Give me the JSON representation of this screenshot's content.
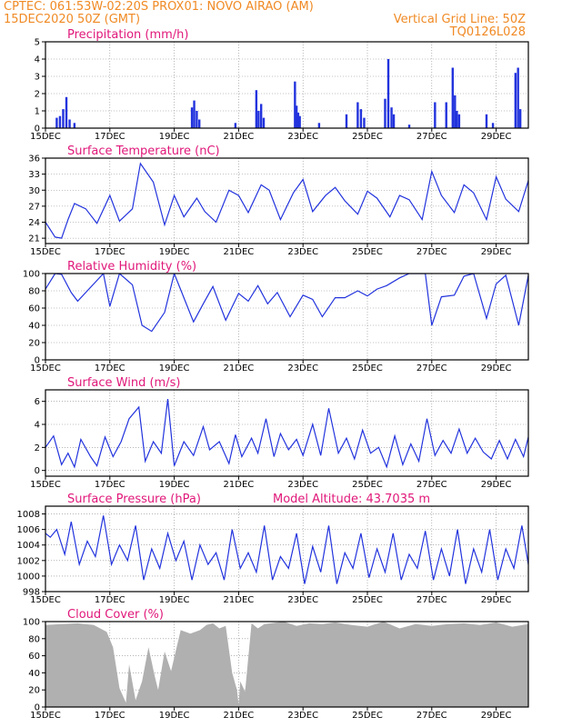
{
  "header": {
    "line1_left": "CPTEC:   061:53W-02:20S    PROX01: NOVO AIRAO (AM)",
    "line2_left": "15DEC2020 50Z (GMT)",
    "line2_right": "Vertical Grid Line: 50Z",
    "line3_right": "TQ0126L028"
  },
  "colors": {
    "header": "#f08a24",
    "title": "#e0187a",
    "series": "#2233dd",
    "cloud": "#b0b0b0",
    "grid": "#888888"
  },
  "x_axis": {
    "tick_labels": [
      "15DEC",
      "17DEC",
      "19DEC",
      "21DEC",
      "23DEC",
      "25DEC",
      "27DEC",
      "29DEC"
    ],
    "tick_days": [
      15,
      17,
      19,
      21,
      23,
      25,
      27,
      29
    ],
    "range_days": [
      15,
      30
    ]
  },
  "chart_data": [
    {
      "type": "bar",
      "title": "Precipitation (mm/h)",
      "ylim": [
        0,
        5
      ],
      "yticks": [
        0,
        1,
        2,
        3,
        4,
        5
      ],
      "x": [
        15.35,
        15.45,
        15.55,
        15.65,
        15.75,
        15.9,
        19.55,
        19.62,
        19.7,
        19.78,
        20.9,
        21.55,
        21.62,
        21.7,
        21.78,
        22.75,
        22.8,
        22.85,
        22.9,
        23.5,
        24.35,
        24.7,
        24.8,
        24.9,
        25.55,
        25.65,
        25.75,
        25.82,
        26.3,
        27.1,
        27.45,
        27.65,
        27.72,
        27.78,
        27.85,
        28.7,
        28.9,
        29.6,
        29.68,
        29.75
      ],
      "values": [
        0.6,
        0.7,
        1.1,
        1.8,
        0.5,
        0.3,
        1.2,
        1.6,
        1.0,
        0.5,
        0.3,
        2.2,
        1.0,
        1.4,
        0.6,
        2.7,
        1.3,
        0.9,
        0.7,
        0.3,
        0.8,
        1.5,
        1.1,
        0.6,
        1.7,
        4.0,
        1.2,
        0.8,
        0.2,
        1.5,
        1.5,
        3.5,
        1.9,
        1.0,
        0.8,
        0.8,
        0.3,
        3.2,
        3.5,
        1.1
      ]
    },
    {
      "type": "line",
      "title": "Surface Temperature (nC)",
      "ylim": [
        20,
        36
      ],
      "yticks": [
        21,
        24,
        27,
        30,
        33,
        36
      ],
      "x": [
        15.0,
        15.3,
        15.5,
        15.7,
        15.9,
        16.25,
        16.6,
        17.0,
        17.3,
        17.7,
        17.95,
        18.35,
        18.7,
        19.0,
        19.3,
        19.7,
        19.95,
        20.3,
        20.7,
        21.0,
        21.3,
        21.7,
        21.95,
        22.3,
        22.7,
        23.0,
        23.3,
        23.7,
        24.0,
        24.3,
        24.7,
        25.0,
        25.3,
        25.7,
        26.0,
        26.3,
        26.7,
        27.0,
        27.3,
        27.7,
        28.0,
        28.3,
        28.7,
        29.0,
        29.3,
        29.7,
        30.0
      ],
      "values": [
        24,
        21.2,
        21.0,
        24.5,
        27.5,
        26.5,
        23.8,
        29,
        24.2,
        26.5,
        35,
        31.5,
        23.5,
        29,
        25,
        28.5,
        26,
        24,
        30,
        29,
        25.8,
        31,
        30,
        24.5,
        29.5,
        32,
        26,
        29,
        30.5,
        28,
        25.5,
        29.8,
        28.5,
        25,
        29,
        28.2,
        24.5,
        33.5,
        29,
        25.8,
        31,
        29.5,
        24.5,
        32.5,
        28.3,
        26,
        31.8
      ]
    },
    {
      "type": "line",
      "title": "Relative Humidity (%)",
      "ylim": [
        0,
        100
      ],
      "yticks": [
        0,
        20,
        40,
        60,
        80,
        100
      ],
      "x": [
        15.0,
        15.3,
        15.5,
        15.8,
        16.0,
        16.3,
        16.8,
        17.0,
        17.3,
        17.7,
        18.0,
        18.3,
        18.7,
        19.0,
        19.3,
        19.6,
        19.9,
        20.2,
        20.6,
        21.0,
        21.3,
        21.6,
        21.9,
        22.2,
        22.6,
        23.0,
        23.3,
        23.6,
        24.0,
        24.3,
        24.7,
        25.0,
        25.3,
        25.6,
        26.0,
        26.3,
        26.6,
        26.8,
        27.0,
        27.3,
        27.7,
        28.0,
        28.3,
        28.7,
        29.0,
        29.3,
        29.7,
        30.0
      ],
      "values": [
        82,
        100,
        99,
        78,
        68,
        80,
        100,
        62,
        100,
        87,
        40,
        33,
        55,
        100,
        72,
        44,
        65,
        85,
        46,
        77,
        68,
        86,
        65,
        78,
        50,
        75,
        70,
        50,
        72,
        72,
        80,
        74,
        82,
        86,
        95,
        100,
        100,
        100,
        40,
        73,
        75,
        97,
        100,
        48,
        88,
        98,
        40,
        98
      ]
    },
    {
      "type": "line",
      "title": "Surface Wind (m/s)",
      "ylim": [
        -0.5,
        7
      ],
      "yticks": [
        0,
        2,
        4,
        6
      ],
      "x": [
        15.0,
        15.25,
        15.5,
        15.7,
        15.9,
        16.1,
        16.4,
        16.6,
        16.85,
        17.1,
        17.35,
        17.6,
        17.9,
        18.1,
        18.35,
        18.6,
        18.8,
        19.0,
        19.3,
        19.6,
        19.9,
        20.1,
        20.4,
        20.7,
        20.9,
        21.1,
        21.4,
        21.6,
        21.85,
        22.1,
        22.3,
        22.55,
        22.8,
        23.0,
        23.3,
        23.55,
        23.8,
        24.1,
        24.35,
        24.6,
        24.85,
        25.1,
        25.35,
        25.6,
        25.85,
        26.1,
        26.35,
        26.6,
        26.85,
        27.1,
        27.35,
        27.6,
        27.85,
        28.1,
        28.35,
        28.6,
        28.85,
        29.1,
        29.35,
        29.6,
        29.85,
        30.0
      ],
      "values": [
        2.0,
        3.0,
        0.5,
        1.5,
        0.3,
        2.7,
        1.2,
        0.4,
        2.9,
        1.2,
        2.5,
        4.5,
        5.5,
        0.8,
        2.5,
        1.5,
        6.2,
        0.4,
        2.5,
        1.3,
        3.8,
        1.8,
        2.5,
        0.6,
        3.1,
        1.2,
        2.8,
        1.5,
        4.5,
        1.2,
        3.2,
        1.8,
        2.7,
        1.3,
        4.0,
        1.3,
        5.4,
        1.5,
        2.8,
        1.0,
        3.5,
        1.5,
        2.0,
        0.3,
        3.0,
        0.5,
        2.3,
        0.8,
        4.5,
        1.3,
        2.6,
        1.5,
        3.6,
        1.5,
        2.8,
        1.6,
        1.0,
        2.6,
        1.0,
        2.7,
        1.2,
        2.9
      ]
    },
    {
      "type": "line",
      "title": "Surface Pressure (hPa)",
      "subtitle": "Model Altitude: 43.7035 m",
      "ylim": [
        998,
        1009
      ],
      "yticks": [
        998,
        1000,
        1002,
        1004,
        1006,
        1008
      ],
      "x": [
        15.0,
        15.15,
        15.35,
        15.6,
        15.8,
        16.05,
        16.3,
        16.55,
        16.8,
        17.05,
        17.3,
        17.55,
        17.8,
        18.05,
        18.3,
        18.55,
        18.8,
        19.05,
        19.3,
        19.55,
        19.8,
        20.05,
        20.3,
        20.55,
        20.8,
        21.05,
        21.3,
        21.55,
        21.8,
        22.05,
        22.3,
        22.55,
        22.8,
        23.05,
        23.3,
        23.55,
        23.8,
        24.05,
        24.3,
        24.55,
        24.8,
        25.05,
        25.3,
        25.55,
        25.8,
        26.05,
        26.3,
        26.55,
        26.8,
        27.05,
        27.3,
        27.55,
        27.8,
        28.05,
        28.3,
        28.55,
        28.8,
        29.05,
        29.3,
        29.55,
        29.8,
        30.0
      ],
      "values": [
        1005.5,
        1005.0,
        1006.0,
        1002.8,
        1007.0,
        1001.5,
        1004.5,
        1002.5,
        1007.8,
        1001.5,
        1004.0,
        1002.0,
        1006.5,
        999.5,
        1003.5,
        1001.0,
        1005.5,
        1002.0,
        1004.5,
        999.5,
        1004.0,
        1001.5,
        1003.0,
        999.5,
        1006.0,
        1001.0,
        1003.0,
        1000.5,
        1006.5,
        999.5,
        1002.5,
        1001.0,
        1005.5,
        999.0,
        1003.8,
        1000.5,
        1006.5,
        999.0,
        1003.0,
        1001.0,
        1005.5,
        999.8,
        1003.5,
        1000.5,
        1005.5,
        999.5,
        1002.8,
        1001.0,
        1005.8,
        999.5,
        1003.5,
        1000.0,
        1006.0,
        999.0,
        1003.5,
        1000.5,
        1006.0,
        999.5,
        1003.5,
        1001.0,
        1006.5,
        1001.5
      ]
    },
    {
      "type": "area",
      "title": "Cloud Cover (%)",
      "ylim": [
        0,
        100
      ],
      "yticks": [
        0,
        20,
        40,
        60,
        80,
        100
      ],
      "x": [
        15.0,
        15.5,
        16.0,
        16.5,
        16.9,
        17.1,
        17.3,
        17.5,
        17.6,
        17.8,
        18.0,
        18.2,
        18.4,
        18.5,
        18.7,
        18.9,
        19.2,
        19.5,
        19.8,
        20.0,
        20.2,
        20.4,
        20.6,
        20.8,
        20.95,
        21.0,
        21.05,
        21.2,
        21.4,
        21.6,
        21.8,
        22.0,
        22.4,
        22.8,
        23.2,
        23.6,
        24.0,
        24.5,
        25.0,
        25.5,
        26.0,
        26.5,
        27.0,
        27.5,
        28.0,
        28.5,
        29.0,
        29.5,
        30.0
      ],
      "values": [
        96,
        97,
        98,
        96,
        88,
        70,
        22,
        5,
        50,
        8,
        30,
        70,
        35,
        20,
        65,
        42,
        90,
        86,
        90,
        96,
        98,
        92,
        95,
        40,
        20,
        3,
        30,
        18,
        98,
        92,
        97,
        98,
        100,
        95,
        98,
        97,
        99,
        96,
        94,
        100,
        92,
        97,
        95,
        97,
        98,
        96,
        99,
        94,
        97
      ]
    }
  ],
  "panels": [
    {
      "title": "Precipitation (mm/h)"
    },
    {
      "title": "Surface Temperature (nC)"
    },
    {
      "title": "Relative Humidity (%)"
    },
    {
      "title": "Surface Wind (m/s)"
    },
    {
      "title": "Surface Pressure (hPa)",
      "subtitle": "Model Altitude: 43.7035 m"
    },
    {
      "title": "Cloud Cover (%)"
    }
  ]
}
